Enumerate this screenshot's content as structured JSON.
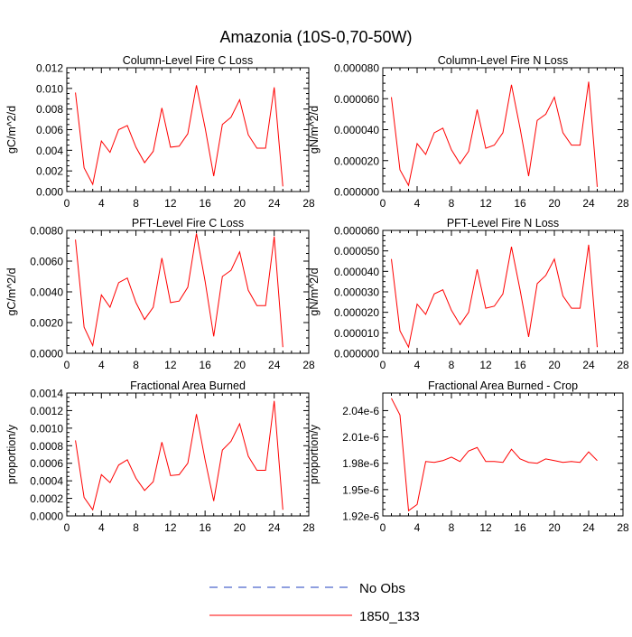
{
  "figure": {
    "title": "Amazonia (10S-0,70-50W)"
  },
  "legend": {
    "entries": [
      {
        "label": "No Obs",
        "color": "#1f3fbf",
        "style": "dashed"
      },
      {
        "label": "1850_133",
        "color": "#ff0000",
        "style": "solid"
      }
    ]
  },
  "chart_data": [
    {
      "type": "line",
      "title": "Column-Level Fire C Loss",
      "ylabel": "gC/m^2/d",
      "xlim": [
        0,
        28
      ],
      "xticks": [
        0,
        4,
        8,
        12,
        16,
        20,
        24,
        28
      ],
      "ylim": [
        0,
        0.012
      ],
      "yticks": [
        0,
        0.002,
        0.004,
        0.006,
        0.008,
        0.01,
        0.012
      ],
      "ytick_labels": [
        "0.000",
        "0.002",
        "0.004",
        "0.006",
        "0.008",
        "0.010",
        "0.012"
      ],
      "series": [
        {
          "name": "1850_133",
          "color": "#ff0000",
          "x": [
            1,
            2,
            3,
            4,
            5,
            6,
            7,
            8,
            9,
            10,
            11,
            12,
            13,
            14,
            15,
            16,
            17,
            18,
            19,
            20,
            21,
            22,
            23,
            24,
            25
          ],
          "y": [
            0.0096,
            0.0023,
            0.0007,
            0.0049,
            0.0038,
            0.006,
            0.0064,
            0.0043,
            0.0028,
            0.0039,
            0.0081,
            0.0043,
            0.0044,
            0.0056,
            0.0103,
            0.0062,
            0.0015,
            0.0065,
            0.0072,
            0.0089,
            0.0055,
            0.0042,
            0.0042,
            0.0101,
            0.0005
          ]
        }
      ]
    },
    {
      "type": "line",
      "title": "Column-Level Fire N Loss",
      "ylabel": "gN/m^2/d",
      "xlim": [
        0,
        28
      ],
      "xticks": [
        0,
        4,
        8,
        12,
        16,
        20,
        24,
        28
      ],
      "ylim": [
        0,
        8e-05
      ],
      "yticks": [
        0,
        2e-05,
        4e-05,
        6e-05,
        8e-05
      ],
      "ytick_labels": [
        "0.000000",
        "0.000020",
        "0.000040",
        "0.000060",
        "0.000080"
      ],
      "series": [
        {
          "name": "1850_133",
          "color": "#ff0000",
          "x": [
            1,
            2,
            3,
            4,
            5,
            6,
            7,
            8,
            9,
            10,
            11,
            12,
            13,
            14,
            15,
            16,
            17,
            18,
            19,
            20,
            21,
            22,
            23,
            24,
            25
          ],
          "y": [
            6.1e-05,
            1.4e-05,
            4e-06,
            3.1e-05,
            2.4e-05,
            3.8e-05,
            4.1e-05,
            2.7e-05,
            1.8e-05,
            2.6e-05,
            5.3e-05,
            2.8e-05,
            3e-05,
            3.8e-05,
            6.9e-05,
            4.1e-05,
            1e-05,
            4.6e-05,
            5e-05,
            6.1e-05,
            3.8e-05,
            3e-05,
            3e-05,
            7.1e-05,
            3e-06
          ]
        }
      ]
    },
    {
      "type": "line",
      "title": "PFT-Level Fire C Loss",
      "ylabel": "gC/m^2/d",
      "xlim": [
        0,
        28
      ],
      "xticks": [
        0,
        4,
        8,
        12,
        16,
        20,
        24,
        28
      ],
      "ylim": [
        0,
        0.008
      ],
      "yticks": [
        0,
        0.002,
        0.004,
        0.006,
        0.008
      ],
      "ytick_labels": [
        "0.0000",
        "0.0020",
        "0.0040",
        "0.0060",
        "0.0080"
      ],
      "series": [
        {
          "name": "1850_133",
          "color": "#ff0000",
          "x": [
            1,
            2,
            3,
            4,
            5,
            6,
            7,
            8,
            9,
            10,
            11,
            12,
            13,
            14,
            15,
            16,
            17,
            18,
            19,
            20,
            21,
            22,
            23,
            24,
            25
          ],
          "y": [
            0.0074,
            0.0017,
            0.0005,
            0.0038,
            0.003,
            0.0046,
            0.0049,
            0.0033,
            0.0022,
            0.003,
            0.0062,
            0.0033,
            0.0034,
            0.0043,
            0.0078,
            0.0047,
            0.0011,
            0.005,
            0.0054,
            0.0066,
            0.0041,
            0.0031,
            0.0031,
            0.0076,
            0.0004
          ]
        }
      ]
    },
    {
      "type": "line",
      "title": "PFT-Level Fire N Loss",
      "ylabel": "gN/m^2/d",
      "xlim": [
        0,
        28
      ],
      "xticks": [
        0,
        4,
        8,
        12,
        16,
        20,
        24,
        28
      ],
      "ylim": [
        0,
        6e-05
      ],
      "yticks": [
        0,
        1e-05,
        2e-05,
        3e-05,
        4e-05,
        5e-05,
        6e-05
      ],
      "ytick_labels": [
        "0.000000",
        "0.000010",
        "0.000020",
        "0.000030",
        "0.000040",
        "0.000050",
        "0.000060"
      ],
      "series": [
        {
          "name": "1850_133",
          "color": "#ff0000",
          "x": [
            1,
            2,
            3,
            4,
            5,
            6,
            7,
            8,
            9,
            10,
            11,
            12,
            13,
            14,
            15,
            16,
            17,
            18,
            19,
            20,
            21,
            22,
            23,
            24,
            25
          ],
          "y": [
            4.6e-05,
            1.1e-05,
            3e-06,
            2.4e-05,
            1.9e-05,
            2.9e-05,
            3.1e-05,
            2.1e-05,
            1.4e-05,
            2e-05,
            4.1e-05,
            2.2e-05,
            2.3e-05,
            2.9e-05,
            5.2e-05,
            3.1e-05,
            8e-06,
            3.4e-05,
            3.8e-05,
            4.6e-05,
            2.8e-05,
            2.2e-05,
            2.2e-05,
            5.3e-05,
            3e-06
          ]
        }
      ]
    },
    {
      "type": "line",
      "title": "Fractional Area Burned",
      "ylabel": "proportion/y",
      "xlim": [
        0,
        28
      ],
      "xticks": [
        0,
        4,
        8,
        12,
        16,
        20,
        24,
        28
      ],
      "ylim": [
        0,
        0.0014
      ],
      "yticks": [
        0,
        0.0002,
        0.0004,
        0.0006,
        0.0008,
        0.001,
        0.0012,
        0.0014
      ],
      "ytick_labels": [
        "0.0000",
        "0.0002",
        "0.0004",
        "0.0006",
        "0.0008",
        "0.0010",
        "0.0012",
        "0.0014"
      ],
      "series": [
        {
          "name": "1850_133",
          "color": "#ff0000",
          "x": [
            1,
            2,
            3,
            4,
            5,
            6,
            7,
            8,
            9,
            10,
            11,
            12,
            13,
            14,
            15,
            16,
            17,
            18,
            19,
            20,
            21,
            22,
            23,
            24,
            25
          ],
          "y": [
            0.00086,
            0.00021,
            7e-05,
            0.00047,
            0.00038,
            0.00058,
            0.00064,
            0.00043,
            0.00029,
            0.00039,
            0.00084,
            0.00046,
            0.00047,
            0.0006,
            0.00116,
            0.00064,
            0.00017,
            0.00075,
            0.00085,
            0.00105,
            0.00068,
            0.00052,
            0.00052,
            0.00131,
            7e-05
          ]
        }
      ]
    },
    {
      "type": "line",
      "title": "Fractional Area Burned - Crop",
      "ylabel": "proportion/y",
      "xlim": [
        0,
        28
      ],
      "xticks": [
        0,
        4,
        8,
        12,
        16,
        20,
        24,
        28
      ],
      "ylim": [
        1.92e-06,
        2.06e-06
      ],
      "yticks": [
        1.92e-06,
        1.95e-06,
        1.98e-06,
        2.01e-06,
        2.04e-06
      ],
      "ytick_labels": [
        "1.92e-6",
        "1.95e-6",
        "1.98e-6",
        "2.01e-6",
        "2.04e-6"
      ],
      "series": [
        {
          "name": "1850_133",
          "color": "#ff0000",
          "x": [
            1,
            2,
            3,
            4,
            5,
            6,
            7,
            8,
            9,
            10,
            11,
            12,
            13,
            14,
            15,
            16,
            17,
            18,
            19,
            20,
            21,
            22,
            23,
            24,
            25
          ],
          "y": [
            2.054e-06,
            2.035e-06,
            1.926e-06,
            1.933e-06,
            1.982e-06,
            1.981e-06,
            1.983e-06,
            1.987e-06,
            1.982e-06,
            1.994e-06,
            1.998e-06,
            1.982e-06,
            1.982e-06,
            1.981e-06,
            1.996e-06,
            1.985e-06,
            1.981e-06,
            1.98e-06,
            1.985e-06,
            1.983e-06,
            1.981e-06,
            1.982e-06,
            1.981e-06,
            1.993e-06,
            1.983e-06
          ]
        }
      ]
    }
  ]
}
